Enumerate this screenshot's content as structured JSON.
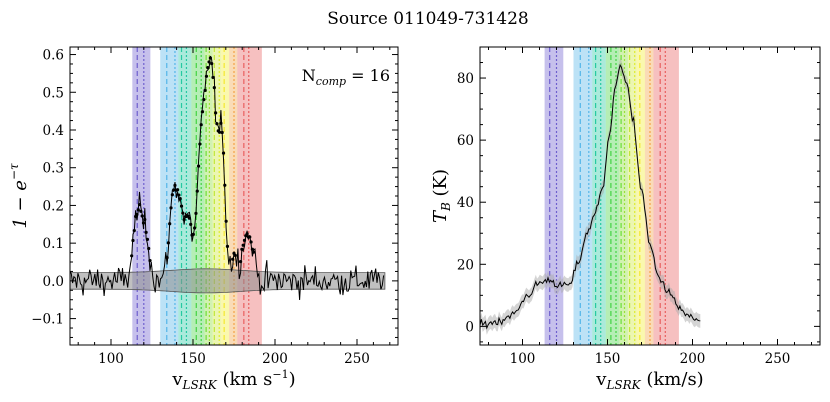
{
  "chart_data": {
    "title": "Source 011049-731428",
    "components": [
      {
        "name": "c1",
        "center": 116,
        "color": "#6a5acd"
      },
      {
        "name": "c2",
        "center": 120,
        "color": "#6a5acd"
      },
      {
        "name": "c3",
        "center": 134,
        "color": "#4fb3e8"
      },
      {
        "name": "c4",
        "center": 139,
        "color": "#4fb3e8"
      },
      {
        "name": "c5",
        "center": 143,
        "color": "#1fc8a0"
      },
      {
        "name": "c6",
        "center": 146,
        "color": "#1fc8a0"
      },
      {
        "name": "c7",
        "center": 152,
        "color": "#3cd13c"
      },
      {
        "name": "c8",
        "center": 155,
        "color": "#3cd13c"
      },
      {
        "name": "c9",
        "center": 158,
        "color": "#66dd33"
      },
      {
        "name": "c10",
        "center": 160,
        "color": "#99e033"
      },
      {
        "name": "c11",
        "center": 163,
        "color": "#bde632"
      },
      {
        "name": "c12",
        "center": 166,
        "color": "#e0ec2a"
      },
      {
        "name": "c13",
        "center": 169,
        "color": "#f3e82a"
      },
      {
        "name": "c14",
        "center": 175,
        "color": "#f3a040"
      },
      {
        "name": "c15",
        "center": 181,
        "color": "#e85a5a"
      },
      {
        "name": "c16",
        "center": 184,
        "color": "#e85a5a"
      }
    ],
    "bands": [
      {
        "lo": 113,
        "hi": 124,
        "color": "#6a5acd"
      },
      {
        "lo": 130,
        "hi": 141,
        "color": "#4fb3e8"
      },
      {
        "lo": 141,
        "hi": 149,
        "color": "#1fc8a0"
      },
      {
        "lo": 149,
        "hi": 157,
        "color": "#3cd13c"
      },
      {
        "lo": 157,
        "hi": 162,
        "color": "#88dd33"
      },
      {
        "lo": 162,
        "hi": 167,
        "color": "#cde832"
      },
      {
        "lo": 167,
        "hi": 172,
        "color": "#f3ec2a"
      },
      {
        "lo": 172,
        "hi": 177,
        "color": "#f3a040"
      },
      {
        "lo": 177,
        "hi": 192,
        "color": "#e85a5a"
      }
    ],
    "panels": [
      {
        "type": "line",
        "xlabel_main": "v",
        "xlabel_sub": "LSRK",
        "xlabel_units": " (km s",
        "xlabel_sup": "−1",
        "xlabel_close": ")",
        "ylabel_main": "1 − e",
        "ylabel_sup": "−τ",
        "annotation_main": "N",
        "annotation_sub": "comp",
        "annotation_eq": " = 16",
        "xlim": [
          75,
          275
        ],
        "ylim": [
          -0.17,
          0.62
        ],
        "xticks": [
          100,
          150,
          200,
          250
        ],
        "yticks": [
          -0.1,
          0.0,
          0.1,
          0.2,
          0.3,
          0.4,
          0.5,
          0.6
        ],
        "ytick_labels": [
          "−0.1",
          "0.0",
          "0.1",
          "0.2",
          "0.3",
          "0.4",
          "0.5",
          "0.6"
        ],
        "noise_band": 0.022,
        "spectrum_range": [
          75,
          267
        ],
        "peaks": [
          {
            "v": 116,
            "amp": 0.17,
            "w": 2.5
          },
          {
            "v": 121,
            "amp": 0.12,
            "w": 2.5
          },
          {
            "v": 138,
            "amp": 0.22,
            "w": 2.5
          },
          {
            "v": 142,
            "amp": 0.14,
            "w": 2.0
          },
          {
            "v": 147,
            "amp": 0.16,
            "w": 2.5
          },
          {
            "v": 155,
            "amp": 0.34,
            "w": 2.5
          },
          {
            "v": 160,
            "amp": 0.49,
            "w": 2.5
          },
          {
            "v": 164,
            "amp": 0.28,
            "w": 2.2
          },
          {
            "v": 168,
            "amp": 0.33,
            "w": 1.8
          },
          {
            "v": 175,
            "amp": 0.07,
            "w": 2.0
          },
          {
            "v": 181,
            "amp": 0.08,
            "w": 2.0
          },
          {
            "v": 185,
            "amp": 0.1,
            "w": 2.5
          }
        ]
      },
      {
        "type": "line",
        "xlabel_main": "v",
        "xlabel_sub": "LSRK",
        "xlabel_units": " (km/s)",
        "ylabel_main": "T",
        "ylabel_sub": "B",
        "ylabel_units": " (K)",
        "xlim": [
          75,
          275
        ],
        "ylim": [
          -6,
          90
        ],
        "xticks": [
          100,
          150,
          200,
          250
        ],
        "yticks": [
          0,
          20,
          40,
          60,
          80
        ],
        "ytick_labels": [
          "0",
          "20",
          "40",
          "60",
          "80"
        ],
        "spectrum_range": [
          75,
          205
        ],
        "profile": [
          {
            "v": 75,
            "t": 0.5
          },
          {
            "v": 85,
            "t": 1.5
          },
          {
            "v": 95,
            "t": 4
          },
          {
            "v": 103,
            "t": 10
          },
          {
            "v": 110,
            "t": 14
          },
          {
            "v": 116,
            "t": 15
          },
          {
            "v": 122,
            "t": 13
          },
          {
            "v": 128,
            "t": 13.5
          },
          {
            "v": 133,
            "t": 21
          },
          {
            "v": 138,
            "t": 30
          },
          {
            "v": 143,
            "t": 37
          },
          {
            "v": 147,
            "t": 44
          },
          {
            "v": 151,
            "t": 62
          },
          {
            "v": 155,
            "t": 78
          },
          {
            "v": 158,
            "t": 84
          },
          {
            "v": 161,
            "t": 79
          },
          {
            "v": 165,
            "t": 66
          },
          {
            "v": 170,
            "t": 44
          },
          {
            "v": 175,
            "t": 26
          },
          {
            "v": 180,
            "t": 16
          },
          {
            "v": 186,
            "t": 11
          },
          {
            "v": 192,
            "t": 6
          },
          {
            "v": 198,
            "t": 3
          },
          {
            "v": 205,
            "t": 1.5
          }
        ]
      }
    ]
  }
}
